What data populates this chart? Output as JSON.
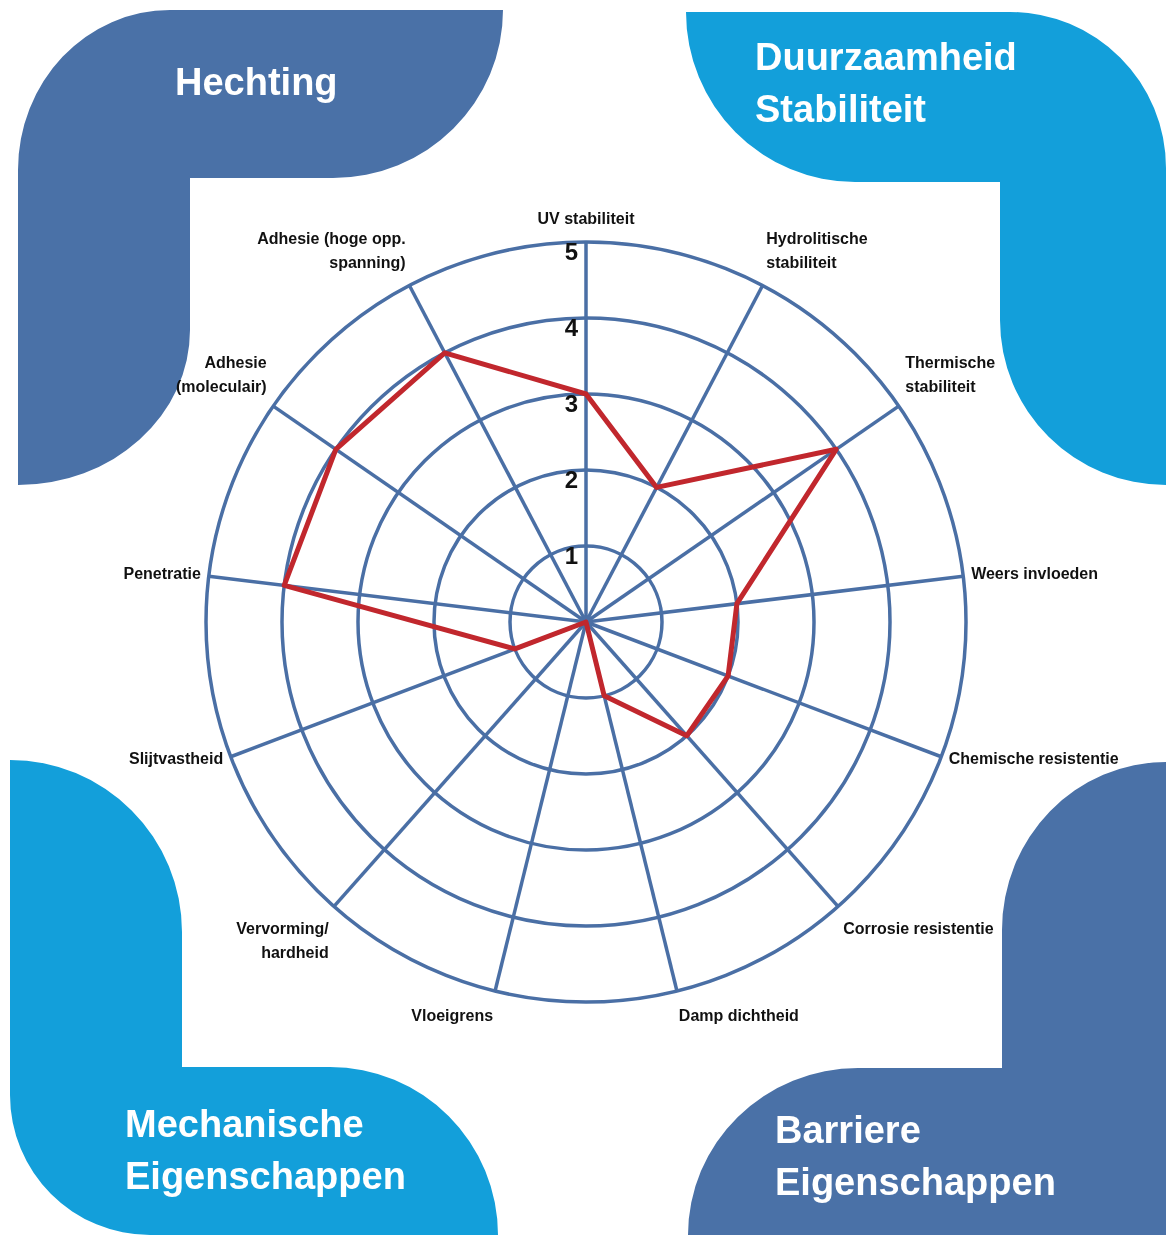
{
  "chart_data": {
    "type": "radar",
    "categories": [
      "UV stabiliteit",
      "Hydrolitische\nstabiliteit",
      "Thermische\nstabiliteit",
      "Weers invloeden",
      "Chemische resistentie",
      "Corrosie resistentie",
      "Damp dichtheid",
      "Vloeigrens",
      "Vervorming/\nhardheid",
      "Slijtvastheid",
      "Penetratie",
      "Adhesie\n(moleculair)",
      "Adhesie (hoge opp.\nspanning)"
    ],
    "series": [
      {
        "color": "#c1272d",
        "values": [
          3,
          2,
          4,
          2,
          2,
          2,
          1,
          0,
          0,
          1,
          4,
          4,
          4
        ]
      }
    ],
    "ylim": [
      0,
      5
    ],
    "yticks": [
      1,
      2,
      3,
      4,
      5
    ],
    "grid": true,
    "annotations": [
      "Hechting",
      "Duurzaamheid\nStabiliteit",
      "Mechanische\nEigenschappen",
      "Barriere\nEigenschappen"
    ]
  }
}
